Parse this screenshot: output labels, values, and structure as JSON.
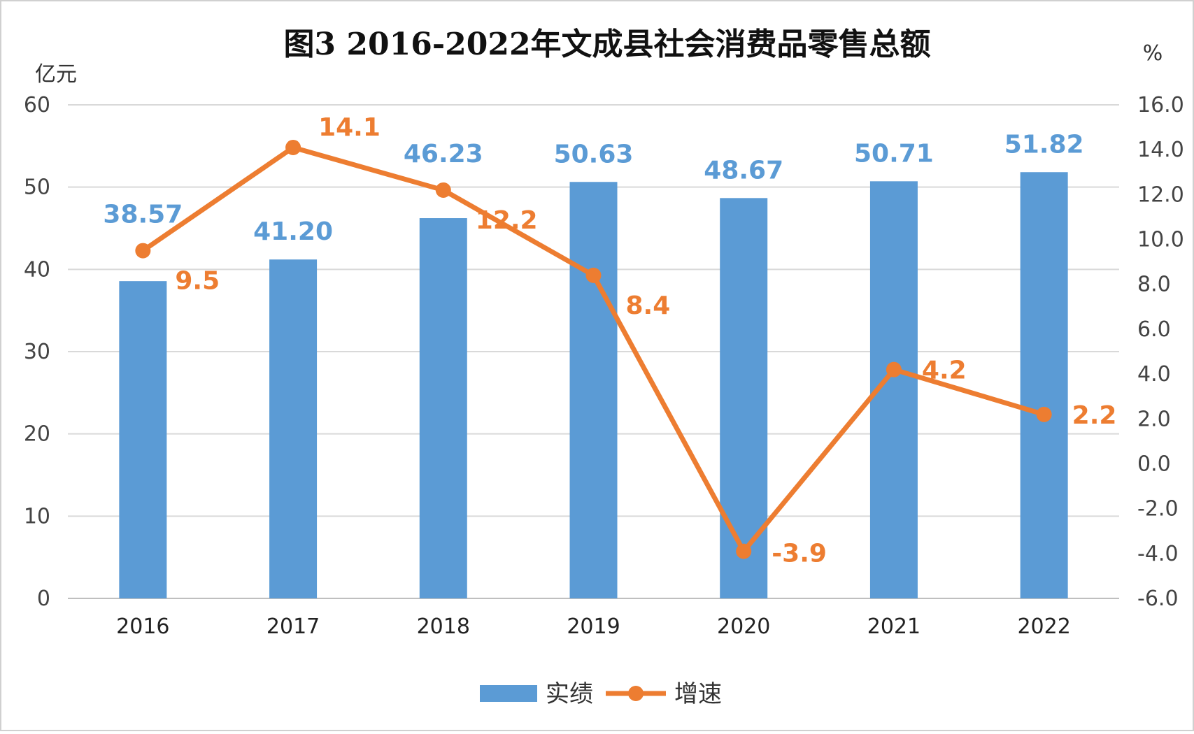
{
  "chart_data": {
    "type": "bar",
    "title": "图3  2016-2022年文成县社会消费品零售总额",
    "ylabel_left": "亿元",
    "ylabel_right": "%",
    "categories": [
      "2016",
      "2017",
      "2018",
      "2019",
      "2020",
      "2021",
      "2022"
    ],
    "ylim_left": [
      0,
      60
    ],
    "yticks_left": [
      "0",
      "10",
      "20",
      "30",
      "40",
      "50",
      "60"
    ],
    "ylim_right": [
      -6,
      16
    ],
    "yticks_right": [
      "-6.0",
      "-4.0",
      "-2.0",
      "0.0",
      "2.0",
      "4.0",
      "6.0",
      "8.0",
      "10.0",
      "12.0",
      "14.0",
      "16.0"
    ],
    "grid": true,
    "legend_position": "bottom",
    "series": [
      {
        "name": "实绩",
        "type": "bar",
        "axis": "left",
        "color": "#5B9BD5",
        "values": [
          38.57,
          41.2,
          46.23,
          50.63,
          48.67,
          50.71,
          51.82
        ],
        "labels": [
          "38.57",
          "41.20",
          "46.23",
          "50.63",
          "48.67",
          "50.71",
          "51.82"
        ]
      },
      {
        "name": "增速",
        "type": "line",
        "axis": "right",
        "color": "#ED7D31",
        "values": [
          9.5,
          14.1,
          12.2,
          8.4,
          -3.9,
          4.2,
          2.2
        ],
        "labels": [
          "9.5",
          "14.1",
          "12.2",
          "8.4",
          "-3.9",
          "4.2",
          "2.2"
        ]
      }
    ]
  }
}
